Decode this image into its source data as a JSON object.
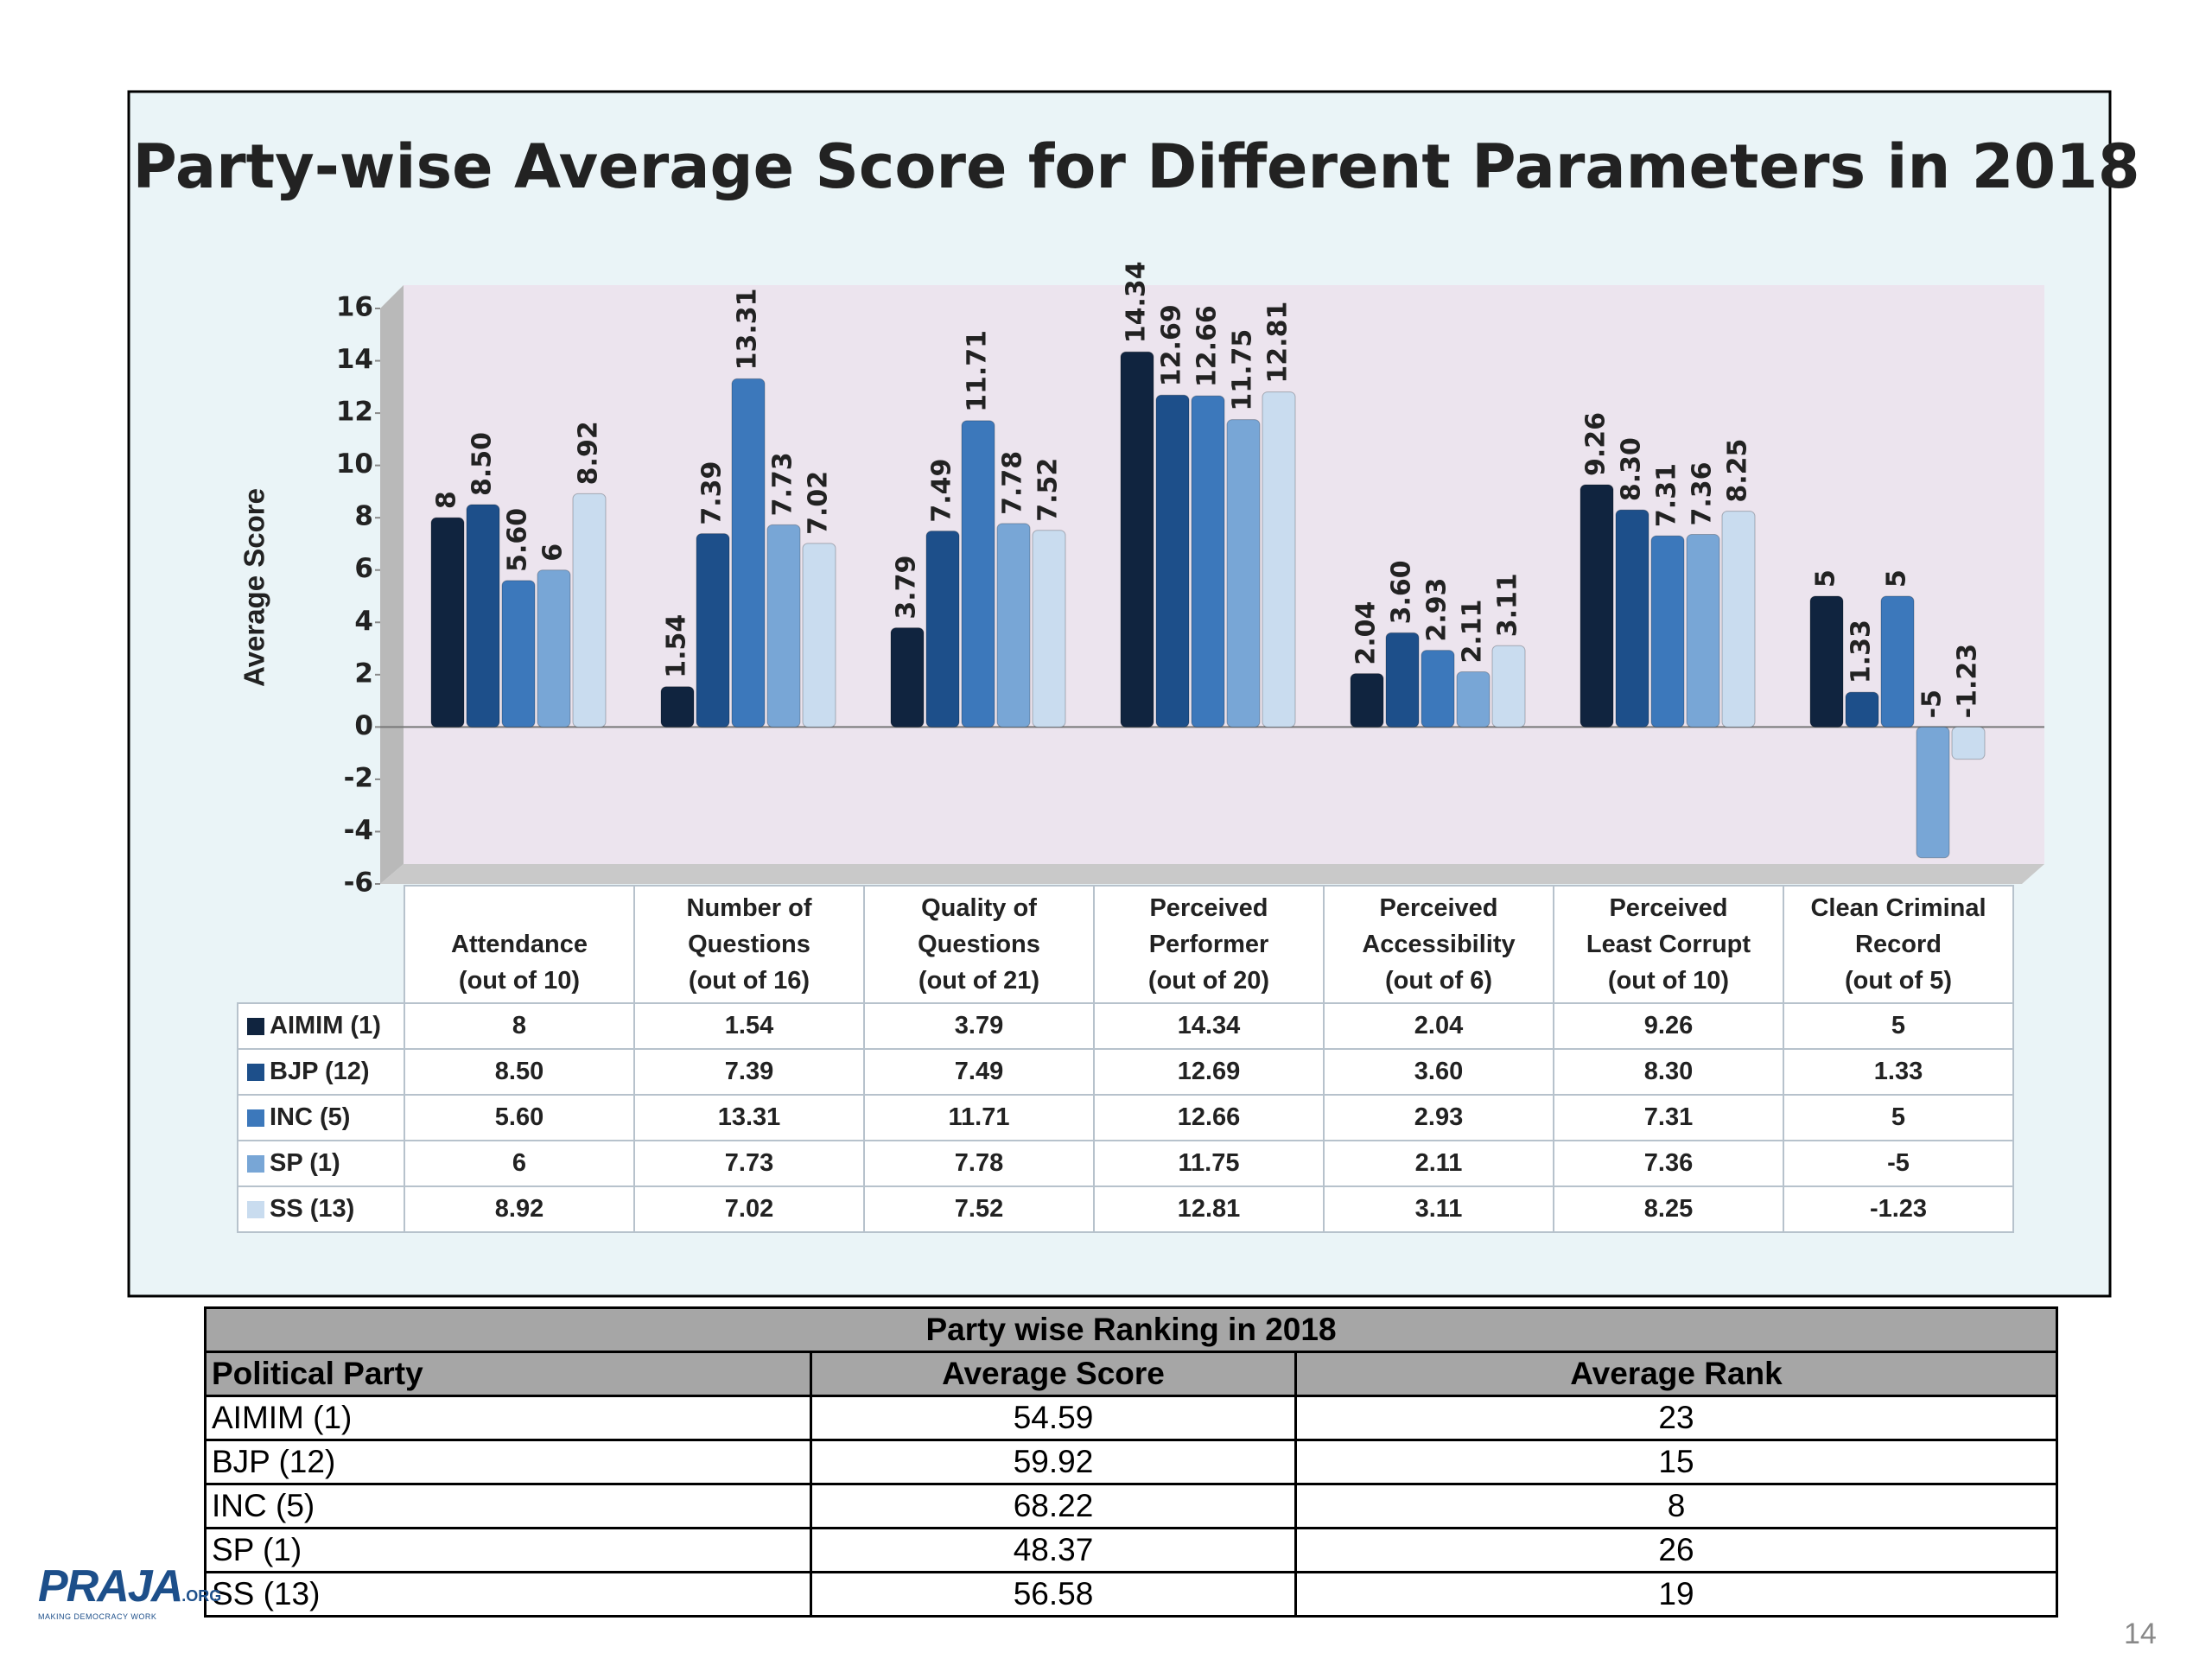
{
  "chart_data": {
    "type": "bar",
    "title": "Party-wise Average Score for Different Parameters in 2018",
    "y_label": "Average Score",
    "categories": [
      "Attendance\n(out of 10)",
      "Number of\nQuestions\n(out of 16)",
      "Quality of\nQuestions\n(out of 21)",
      "Perceived\nPerformer\n(out of 20)",
      "Perceived\nAccessibility\n(out of 6)",
      "Perceived\nLeast Corrupt\n(out of 10)",
      "Clean Criminal\nRecord\n(out of 5)"
    ],
    "series": [
      {
        "name": "AIMIM (1)",
        "color": "#10243f",
        "values": [
          8,
          1.54,
          3.79,
          14.34,
          2.04,
          9.26,
          5
        ],
        "value_labels": [
          "8",
          "1.54",
          "3.79",
          "14.34",
          "2.04",
          "9.26",
          "5"
        ]
      },
      {
        "name": "BJP (12)",
        "color": "#1d4f8a",
        "values": [
          8.5,
          7.39,
          7.49,
          12.69,
          3.6,
          8.3,
          1.33
        ],
        "value_labels": [
          "8.50",
          "7.39",
          "7.49",
          "12.69",
          "3.60",
          "8.30",
          "1.33"
        ]
      },
      {
        "name": "INC (5)",
        "color": "#3c78bb",
        "values": [
          5.6,
          13.31,
          11.71,
          12.66,
          2.93,
          7.31,
          5
        ],
        "value_labels": [
          "5.60",
          "13.31",
          "11.71",
          "12.66",
          "2.93",
          "7.31",
          "5"
        ]
      },
      {
        "name": "SP (1)",
        "color": "#78a6d6",
        "values": [
          6,
          7.73,
          7.78,
          11.75,
          2.11,
          7.36,
          -5
        ],
        "value_labels": [
          "6",
          "7.73",
          "7.78",
          "11.75",
          "2.11",
          "7.36",
          "-5"
        ]
      },
      {
        "name": "SS (13)",
        "color": "#c9dcef",
        "values": [
          8.92,
          7.02,
          7.52,
          12.81,
          3.11,
          8.25,
          -1.23
        ],
        "value_labels": [
          "8.92",
          "7.02",
          "7.52",
          "12.81",
          "3.11",
          "8.25",
          "-1.23"
        ]
      }
    ],
    "ylim": [
      -6,
      16
    ],
    "yticks": [
      -6,
      -4,
      -2,
      0,
      2,
      4,
      6,
      8,
      10,
      12,
      14,
      16
    ],
    "grid": false
  },
  "ranking": {
    "title": "Party wise Ranking in 2018",
    "header": [
      "Political Party",
      "Average Score",
      "Average Rank"
    ],
    "rows": [
      [
        "AIMIM (1)",
        54.59,
        23
      ],
      [
        "BJP (12)",
        59.92,
        15
      ],
      [
        "INC (5)",
        68.22,
        8
      ],
      [
        "SP (1)",
        48.37,
        26
      ],
      [
        "SS (13)",
        56.58,
        19
      ]
    ]
  },
  "logo": {
    "text": "PRAJA",
    "suffix": ".ORG",
    "tagline": "MAKING DEMOCRACY WORK"
  },
  "page_number": "14"
}
